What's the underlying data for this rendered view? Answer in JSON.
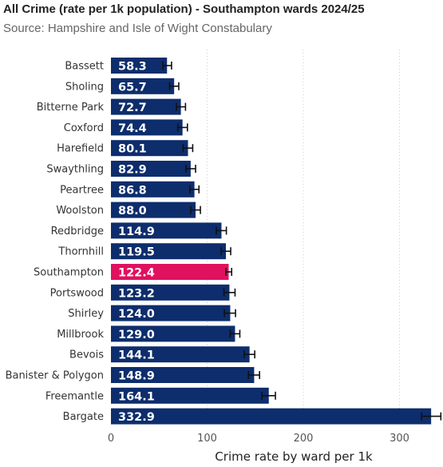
{
  "header": {
    "title": "All Crime (rate per 1k population) - Southampton wards 2024/25",
    "subtitle": "Source: Hampshire and Isle of Wight Constabulary"
  },
  "chart_data": {
    "type": "bar",
    "orientation": "horizontal",
    "title": "All Crime (rate per 1k population) - Southampton wards 2024/25",
    "subtitle": "Source: Hampshire and Isle of Wight Constabulary",
    "xlabel": "Crime rate by ward per 1k",
    "ylabel": "",
    "xlim": [
      0,
      340
    ],
    "xticks": [
      0,
      100,
      200,
      300
    ],
    "grid": "vertical dotted",
    "bar_color": "#0d2d6c",
    "highlight_color": "#e0115f",
    "highlight_category": "Southampton",
    "error_bars": true,
    "categories": [
      "Bassett",
      "Sholing",
      "Bitterne Park",
      "Coxford",
      "Harefield",
      "Swaythling",
      "Peartree",
      "Woolston",
      "Redbridge",
      "Thornhill",
      "Southampton",
      "Portswood",
      "Shirley",
      "Millbrook",
      "Bevois",
      "Banister & Polygon",
      "Freemantle",
      "Bargate"
    ],
    "values": [
      58.3,
      65.7,
      72.7,
      74.4,
      80.1,
      82.9,
      86.8,
      88.0,
      114.9,
      119.5,
      122.4,
      123.2,
      124.0,
      129.0,
      144.1,
      148.9,
      164.1,
      332.9
    ],
    "value_labels": [
      "58.3",
      "65.7",
      "72.7",
      "74.4",
      "80.1",
      "82.9",
      "86.8",
      "88.0",
      "114.9",
      "119.5",
      "122.4",
      "123.2",
      "124.0",
      "129.0",
      "144.1",
      "148.9",
      "164.1",
      "332.9"
    ],
    "error_low": [
      54,
      61,
      68,
      69.5,
      75,
      78,
      82,
      83,
      109.5,
      114.5,
      119.5,
      117.5,
      118,
      124,
      138.5,
      143,
      157,
      323
    ],
    "error_high": [
      63,
      70.5,
      77.5,
      79.5,
      85,
      88,
      91.5,
      93,
      120,
      124.5,
      125.5,
      129,
      129.5,
      134,
      149.5,
      154.5,
      171,
      343
    ]
  }
}
